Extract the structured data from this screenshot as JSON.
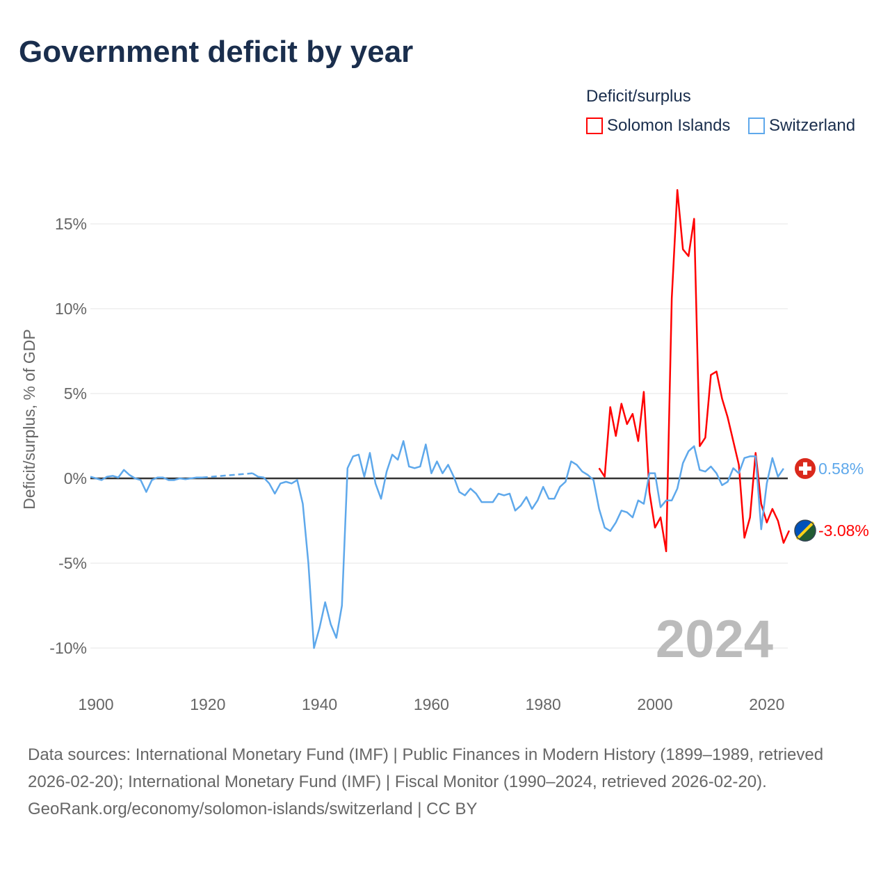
{
  "title": "Government deficit by year",
  "legend": {
    "title": "Deficit/surplus",
    "items": [
      {
        "label": "Solomon Islands",
        "color": "#ff0000"
      },
      {
        "label": "Switzerland",
        "color": "#5ea8eb"
      }
    ]
  },
  "footer": {
    "sources": "Data sources: International Monetary Fund (IMF) | Public Finances in Modern History (1899–1989, retrieved 2026-02-20); International Monetary Fund (IMF) | Fiscal Monitor (1990–2024, retrieved 2026-02-20).",
    "credit": "GeoRank.org/economy/solomon-islands/switzerland | CC BY"
  },
  "chart_data": {
    "type": "line",
    "title": "Government deficit by year",
    "ylabel": "Deficit/surplus, % of GDP",
    "xlim": [
      1899,
      2024
    ],
    "ylim": [
      -10,
      17
    ],
    "xticks": [
      1900,
      1920,
      1940,
      1960,
      1980,
      2000,
      2020
    ],
    "xtick_labels": [
      "1900",
      "1920",
      "1940",
      "1960",
      "1980",
      "2000",
      "2020"
    ],
    "yticks": [
      -10,
      -5,
      0,
      5,
      10,
      15
    ],
    "ytick_labels": [
      "-10%",
      "-5%",
      "0%",
      "5%",
      "10%",
      "15%"
    ],
    "year_label": "2024",
    "series": [
      {
        "name": "Switzerland",
        "color": "#5ea8eb",
        "end_label": "0.58%",
        "flag": "switzerland-flag",
        "start": 1899,
        "values": [
          0.1,
          0,
          -0.1,
          0.1,
          0.15,
          0.05,
          0.5,
          0.2,
          0,
          -0.1,
          -0.8,
          -0.1,
          0.05,
          0.05,
          -0.1,
          -0.1,
          0,
          -0.05,
          0,
          0.05,
          0.05,
          null,
          null,
          null,
          null,
          null,
          null,
          null,
          null,
          0.3,
          0.1,
          0.05,
          -0.3,
          -0.9,
          -0.3,
          -0.2,
          -0.3,
          -0.1,
          -1.5,
          -5,
          -10,
          -8.8,
          -7.3,
          -8.6,
          -9.4,
          -7.5,
          0.6,
          1.3,
          1.4,
          0.1,
          1.5,
          -0.3,
          -1.2,
          0.4,
          1.4,
          1.1,
          2.2,
          0.7,
          0.6,
          0.7,
          2.0,
          0.3,
          1.0,
          0.3,
          0.8,
          0.1,
          -0.8,
          -1.0,
          -0.6,
          -0.9,
          -1.4,
          -1.4,
          -1.4,
          -0.9,
          -1.0,
          -0.9,
          -1.9,
          -1.6,
          -1.1,
          -1.8,
          -1.3,
          -0.5,
          -1.2,
          -1.2,
          -0.5,
          -0.2,
          1.0,
          0.8,
          0.4,
          0.2,
          -0.1,
          -1.8,
          -2.9,
          -3.1,
          -2.6,
          -1.9,
          -2.0,
          -2.3,
          -1.3,
          -1.5,
          0.3,
          0.3,
          -1.7,
          -1.3,
          -1.3,
          -0.6,
          0.9,
          1.6,
          1.9,
          0.5,
          0.4,
          0.7,
          0.3,
          -0.4,
          -0.2,
          0.6,
          0.3,
          1.2,
          1.3,
          1.3,
          -3.0,
          -0.3,
          1.2,
          0.1,
          0.58
        ]
      },
      {
        "name": "Solomon Islands",
        "color": "#ff0000",
        "end_label": "-3.08%",
        "flag": "solomon-islands-flag",
        "start": 1990,
        "values": [
          0.6,
          0.1,
          4.2,
          2.5,
          4.4,
          3.2,
          3.8,
          2.2,
          5.1,
          -0.8,
          -2.9,
          -2.3,
          -4.3,
          10.6,
          17.0,
          13.5,
          13.1,
          15.3,
          1.9,
          2.4,
          6.1,
          6.3,
          4.7,
          3.6,
          2.2,
          0.8,
          -3.5,
          -2.3,
          1.5,
          -1.5,
          -2.6,
          -1.8,
          -2.5,
          -3.8,
          -3.08
        ]
      }
    ]
  }
}
